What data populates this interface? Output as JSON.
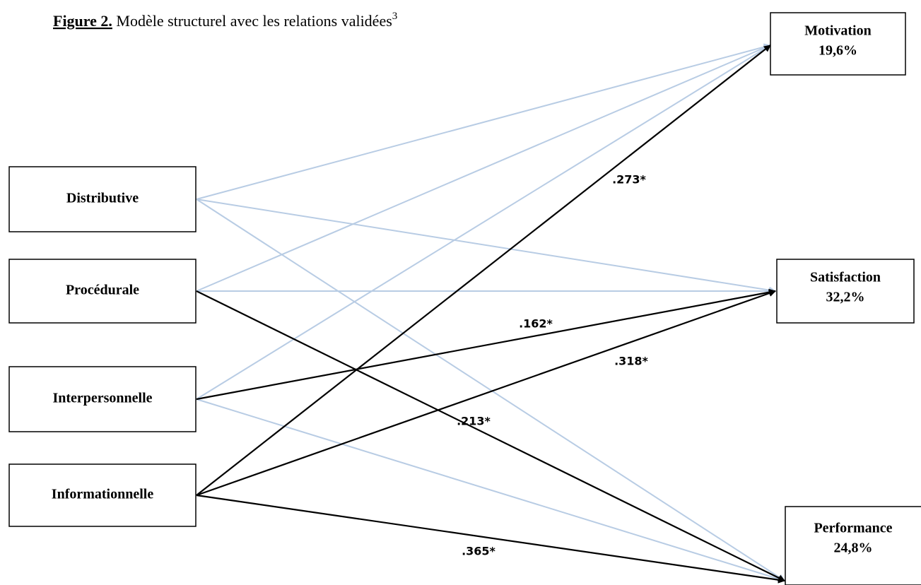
{
  "figure": {
    "label": "Figure 2.",
    "caption": "Modèle structurel avec les relations validées",
    "footnote": "3"
  },
  "sources": [
    "Distributive",
    "Procédurale",
    "Interpersonnelle",
    "Informationnelle"
  ],
  "outcomes": [
    {
      "name": "Motivation",
      "variance": "19,6%"
    },
    {
      "name": "Satisfaction",
      "variance": "32,2%"
    },
    {
      "name": "Performance",
      "variance": "24,8%"
    }
  ],
  "coefficients": [
    ".273*",
    ".162*",
    ".318*",
    ".213*",
    ".365*"
  ]
}
